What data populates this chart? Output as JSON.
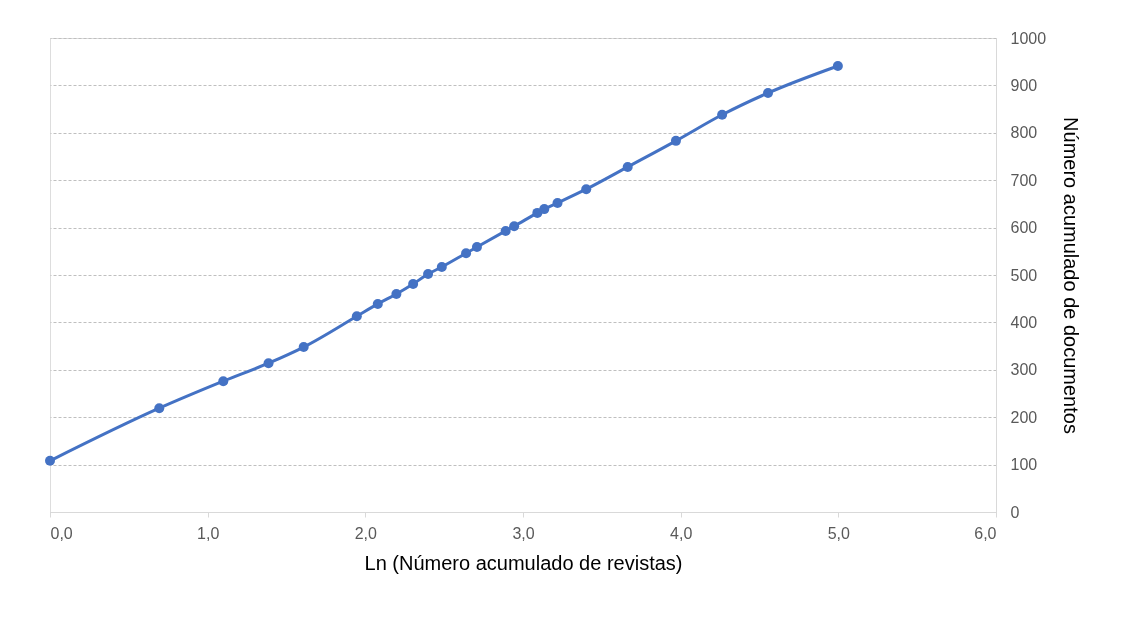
{
  "chart_data": {
    "type": "line",
    "xlabel": "Ln (Número acumulado de revistas)",
    "ylabel": "Número acumulado de documentos",
    "x": [
      0,
      0.693,
      1.099,
      1.386,
      1.609,
      1.946,
      2.079,
      2.197,
      2.303,
      2.398,
      2.485,
      2.639,
      2.708,
      2.89,
      2.944,
      3.091,
      3.135,
      3.219,
      3.401,
      3.664,
      3.97,
      4.263,
      4.554,
      4.997
    ],
    "series": [
      {
        "color": "#4472c4",
        "values": [
          108,
          219,
          276,
          314,
          348,
          413,
          439,
          460,
          481,
          502,
          517,
          546,
          559,
          593,
          603,
          631,
          639,
          652,
          681,
          728,
          783,
          838,
          884,
          941
        ]
      }
    ],
    "xlim": [
      0,
      6
    ],
    "xticks": [
      {
        "value": 0,
        "label": "0,0"
      },
      {
        "value": 1,
        "label": "1,0"
      },
      {
        "value": 2,
        "label": "2,0"
      },
      {
        "value": 3,
        "label": "3,0"
      },
      {
        "value": 4,
        "label": "4,0"
      },
      {
        "value": 5,
        "label": "5,0"
      },
      {
        "value": 6,
        "label": "6,0"
      }
    ],
    "ylim": [
      0,
      1000
    ],
    "yticks": [
      0,
      100,
      200,
      300,
      400,
      500,
      600,
      700,
      800,
      900,
      1000
    ],
    "grid": "y",
    "marker": "circle",
    "line_style": "solid"
  }
}
